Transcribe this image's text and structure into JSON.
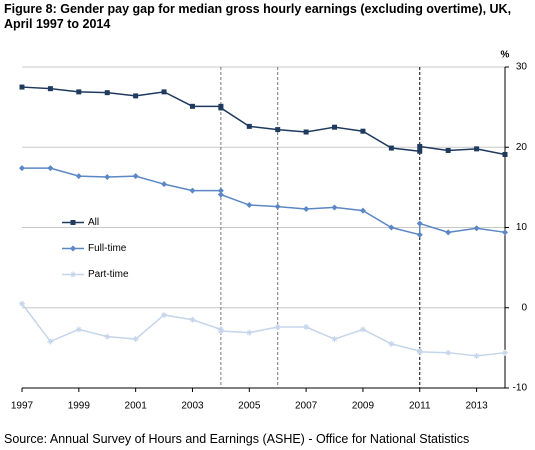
{
  "chart_data": {
    "type": "line",
    "title": "Figure 8: Gender pay gap for median gross hourly earnings (excluding overtime), UK, April 1997 to 2014",
    "y_label": "%",
    "source": "Source: Annual Survey of Hours and Earnings (ASHE) - Office for National Statistics",
    "x": [
      1997,
      1998,
      1999,
      2000,
      2001,
      2002,
      2003,
      2004,
      2004,
      2005,
      2006,
      2007,
      2008,
      2009,
      2010,
      2011,
      2011,
      2012,
      2013,
      2014
    ],
    "series": [
      {
        "name": "All",
        "color": "#1f3a5f",
        "marker": "square",
        "values": [
          27.5,
          27.3,
          26.9,
          26.8,
          26.4,
          26.9,
          25.1,
          25.1,
          24.9,
          22.6,
          22.2,
          21.9,
          22.5,
          22.0,
          19.9,
          19.5,
          20.1,
          19.6,
          19.8,
          19.1
        ]
      },
      {
        "name": "Full-time",
        "color": "#5b87c5",
        "marker": "diamond",
        "values": [
          17.4,
          17.4,
          16.4,
          16.3,
          16.4,
          15.4,
          14.6,
          14.6,
          14.1,
          12.8,
          12.6,
          12.3,
          12.5,
          12.1,
          10.0,
          9.1,
          10.5,
          9.4,
          9.9,
          9.4
        ]
      },
      {
        "name": "Part-time",
        "color": "#c5d5ea",
        "marker": "cross",
        "values": [
          0.5,
          -4.2,
          -2.7,
          -3.6,
          -3.9,
          -0.9,
          -1.5,
          -2.7,
          -2.9,
          -3.1,
          -2.4,
          -2.4,
          -3.9,
          -2.7,
          -4.5,
          -5.4,
          -5.5,
          -5.6,
          -6.0,
          -5.6
        ]
      }
    ],
    "xlim": [
      1997,
      2014
    ],
    "xticks": [
      1997,
      1999,
      2001,
      2003,
      2005,
      2007,
      2009,
      2011,
      2013
    ],
    "ylim": [
      -10,
      30
    ],
    "yticks": [
      -10,
      0,
      10,
      20,
      30
    ],
    "grid": true,
    "legend": "center left",
    "vlines": [
      {
        "x": 2004,
        "color": "#777777"
      },
      {
        "x": 2006,
        "color": "#777777"
      },
      {
        "x": 2011,
        "color": "#000000"
      }
    ]
  }
}
